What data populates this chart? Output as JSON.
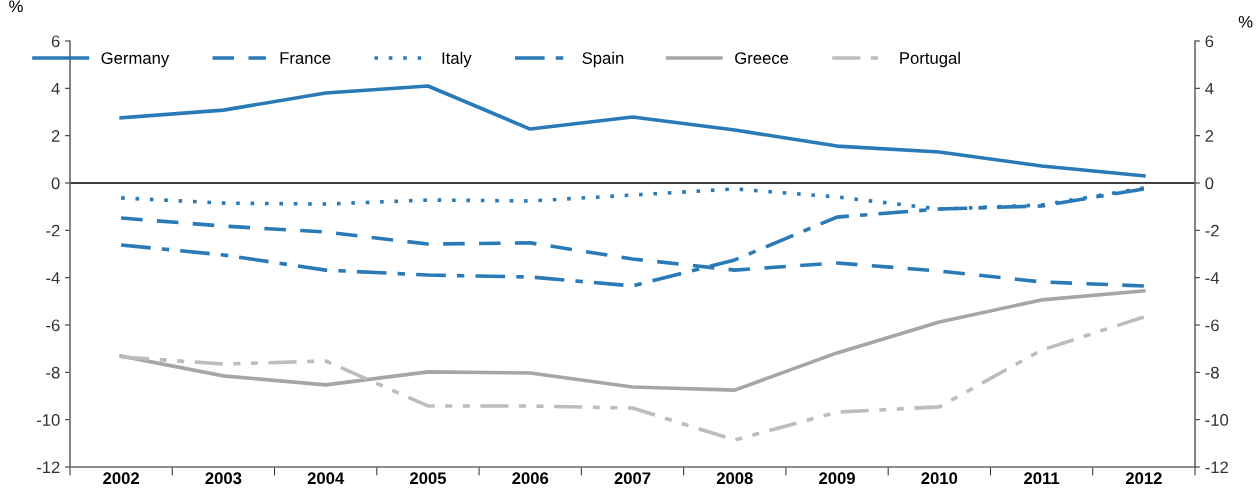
{
  "chart_data": {
    "type": "line",
    "ylabel": "%",
    "y2label": "%",
    "categories": [
      "2002",
      "2003",
      "2004",
      "2005",
      "2006",
      "2007",
      "2008",
      "2009",
      "2010",
      "2011",
      "2012"
    ],
    "series": [
      {
        "name": "Germany",
        "color": "#2a7ab8",
        "line_style": "solid",
        "values": [
          2.75,
          3.08,
          3.8,
          4.1,
          2.28,
          2.79,
          2.24,
          1.56,
          1.31,
          0.72,
          0.3
        ]
      },
      {
        "name": "France",
        "color": "#2a7ab8",
        "line_style": "dashed",
        "values": [
          -1.48,
          -1.82,
          -2.07,
          -2.58,
          -2.53,
          -3.21,
          -3.68,
          -3.38,
          -3.72,
          -4.18,
          -4.35
        ]
      },
      {
        "name": "Italy",
        "color": "#2a7ab8",
        "line_style": "dotted",
        "values": [
          -0.63,
          -0.85,
          -0.89,
          -0.72,
          -0.76,
          -0.51,
          -0.25,
          -0.59,
          -1.1,
          -0.93,
          -0.21
        ]
      },
      {
        "name": "Spain",
        "color": "#2a7ab8",
        "line_style": "dashdot",
        "values": [
          -2.62,
          -3.04,
          -3.68,
          -3.89,
          -3.97,
          -4.35,
          -3.25,
          -1.44,
          -1.1,
          -0.97,
          -0.25
        ]
      },
      {
        "name": "Greece",
        "color": "#a6a6a6",
        "line_style": "solid",
        "values": [
          -7.31,
          -8.15,
          -8.53,
          -7.98,
          -8.03,
          -8.62,
          -8.75,
          -7.18,
          -5.87,
          -4.94,
          -4.56
        ]
      },
      {
        "name": "Portugal",
        "color": "#bdbdbd",
        "line_style": "dashdotdot",
        "values": [
          -7.35,
          -7.65,
          -7.52,
          -9.42,
          -9.42,
          -9.51,
          -10.86,
          -9.68,
          -9.46,
          -7.06,
          -5.66
        ]
      }
    ],
    "ylim": [
      -12,
      6
    ],
    "yticks": [
      -12,
      -10,
      -8,
      -6,
      -4,
      -2,
      0,
      2,
      4,
      6
    ],
    "y2lim": [
      -12,
      6
    ],
    "y2ticks": [
      -12,
      -10,
      -8,
      -6,
      -4,
      -2,
      0,
      2,
      4,
      6
    ],
    "ref_lines": [
      {
        "axis": "y",
        "value": 0,
        "color": "#000000"
      }
    ],
    "grid": false,
    "legend": "top",
    "marker": "none"
  }
}
